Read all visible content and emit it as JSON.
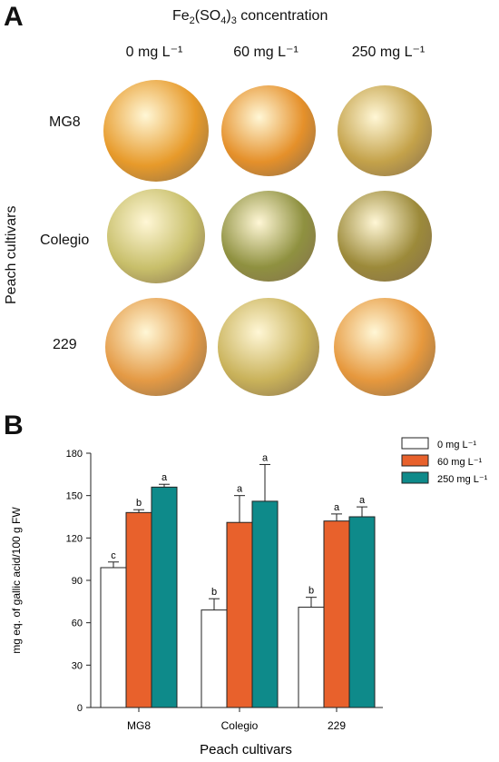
{
  "panel_a": {
    "letter": "A",
    "concentration_title": "Fe2(SO4)3 concentration",
    "column_labels": [
      "0 mg L⁻¹",
      "60 mg L⁻¹",
      "250 mg L⁻¹"
    ],
    "row_labels": [
      "MG8",
      "Colegio",
      "229"
    ],
    "side_label": "Peach cultivars",
    "fruit_colors": [
      [
        "#e79a2a",
        "#e5902a",
        "#c4a24a"
      ],
      [
        "#c8bf6a",
        "#8f9140",
        "#9c8a3a"
      ],
      [
        "#e49a45",
        "#c9b25a",
        "#e6983d"
      ]
    ]
  },
  "panel_b": {
    "letter": "B"
  },
  "chart_data": {
    "type": "bar",
    "categories": [
      "MG8",
      "Colegio",
      "229"
    ],
    "xlabel": "Peach cultivars",
    "ylabel": "mg eq. of gallic acid/100 g FW",
    "ylim": [
      0,
      180
    ],
    "yticks": [
      0,
      30,
      60,
      90,
      120,
      150,
      180
    ],
    "legend_position": "top-right",
    "series": [
      {
        "name": "0 mg L⁻¹",
        "color": "#ffffff",
        "values": [
          99,
          69,
          71
        ],
        "errors": [
          4,
          8,
          7
        ],
        "letters": [
          "c",
          "b",
          "b"
        ]
      },
      {
        "name": "60 mg L⁻¹",
        "color": "#e8612c",
        "values": [
          138,
          131,
          132
        ],
        "errors": [
          2,
          19,
          5
        ],
        "letters": [
          "b",
          "a",
          "a"
        ]
      },
      {
        "name": "250 mg L⁻¹",
        "color": "#0e8a8a",
        "values": [
          156,
          146,
          135
        ],
        "errors": [
          2,
          26,
          7
        ],
        "letters": [
          "a",
          "a",
          "a"
        ]
      }
    ]
  }
}
